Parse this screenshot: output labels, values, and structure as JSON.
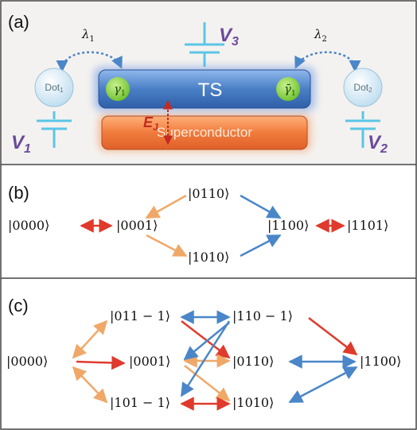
{
  "panel_a": {
    "label": "(a)",
    "ts_label": "TS",
    "superconductor_label": "Superconductor",
    "dot1": {
      "name": "Dot",
      "sub": "1"
    },
    "dot2": {
      "name": "Dot",
      "sub": "2"
    },
    "lambda1": {
      "sym": "λ",
      "sub": "1"
    },
    "lambda2": {
      "sym": "λ",
      "sub": "2"
    },
    "gamma_left": {
      "sym": "γ",
      "sub": "1"
    },
    "gamma_right": {
      "sym": "γ̄",
      "sub": "1"
    },
    "ej": {
      "sym": "E",
      "sub": "J"
    },
    "v1": {
      "sym": "V",
      "sub": "1"
    },
    "v2": {
      "sym": "V",
      "sub": "2"
    },
    "v3": {
      "sym": "V",
      "sub": "3"
    }
  },
  "panel_b": {
    "label": "(b)",
    "states": [
      "|0000⟩",
      "|0001⟩",
      "|0110⟩",
      "|1010⟩",
      "|1100⟩",
      "|1101⟩"
    ]
  },
  "panel_c": {
    "label": "(c)",
    "states": [
      "|0000⟩",
      "|011 − 1⟩",
      "|0001⟩",
      "|101 − 1⟩",
      "|110 − 1⟩",
      "|0110⟩",
      "|1010⟩",
      "|1100⟩"
    ]
  },
  "colors": {
    "arrow_orange": "#f0a868",
    "arrow_red": "#e03a2c",
    "arrow_blue": "#4a86c8",
    "ts_bar": "#4a7fc6",
    "superconductor_bar": "#f07c3c",
    "majorana": "#7fd03c",
    "dot": "#cde6f4",
    "gate": "#5bc6e6",
    "voltage_label": "#6a4a9c",
    "panel_a_bg": "#f4f2f0"
  },
  "icons": [
    "quantum-dot-icon",
    "gate-electrode-icon",
    "majorana-mode-icon",
    "tunneling-arrow-icon"
  ]
}
